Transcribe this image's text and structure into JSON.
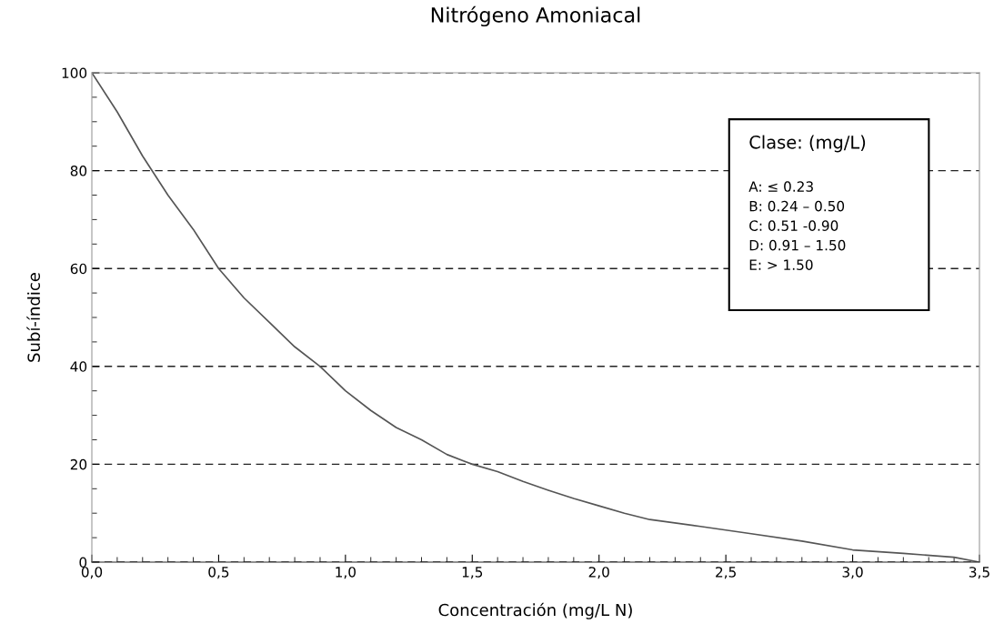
{
  "chart_data": {
    "type": "line",
    "title": "Nitrógeno Amoniacal",
    "xlabel": "Concentración (mg/L N)",
    "ylabel": "Subí-índice",
    "x": [
      0,
      0.1,
      0.2,
      0.3,
      0.4,
      0.5,
      0.6,
      0.7,
      0.8,
      0.9,
      1.0,
      1.1,
      1.2,
      1.3,
      1.4,
      1.5,
      1.6,
      1.7,
      1.8,
      1.9,
      2.0,
      2.1,
      2.2,
      2.4,
      2.6,
      2.8,
      3.0,
      3.2,
      3.4,
      3.5
    ],
    "series": [
      {
        "color": "#555555",
        "values": [
          100,
          92,
          83,
          75,
          68,
          60,
          54,
          49,
          44,
          40,
          35,
          31,
          27.5,
          25,
          22,
          20,
          18.5,
          16.5,
          14.7,
          13,
          11.5,
          10,
          8.7,
          7.3,
          5.8,
          4.3,
          2.5,
          1.8,
          1.0,
          0
        ]
      }
    ],
    "xlim": [
      0,
      3.5
    ],
    "ylim": [
      0,
      100
    ],
    "xticks": [
      {
        "value": 0,
        "label": "0,0"
      },
      {
        "value": 0.5,
        "label": "0,5"
      },
      {
        "value": 1.0,
        "label": "1,0"
      },
      {
        "value": 1.5,
        "label": "1,5"
      },
      {
        "value": 2.0,
        "label": "2,0"
      },
      {
        "value": 2.5,
        "label": "2,5"
      },
      {
        "value": 3.0,
        "label": "3,0"
      },
      {
        "value": 3.5,
        "label": "3,5"
      }
    ],
    "yticks": [
      0,
      20,
      40,
      60,
      80,
      100
    ],
    "grid": "y",
    "marker": "none",
    "line_style": "solid",
    "annotations": [
      "Clase: (mg/L)",
      "A: ≤ 0.23",
      "B: 0.24 – 0.50",
      "C: 0.51 -0.90",
      "D: 0.91 – 1.50",
      "E: > 1.50"
    ]
  }
}
